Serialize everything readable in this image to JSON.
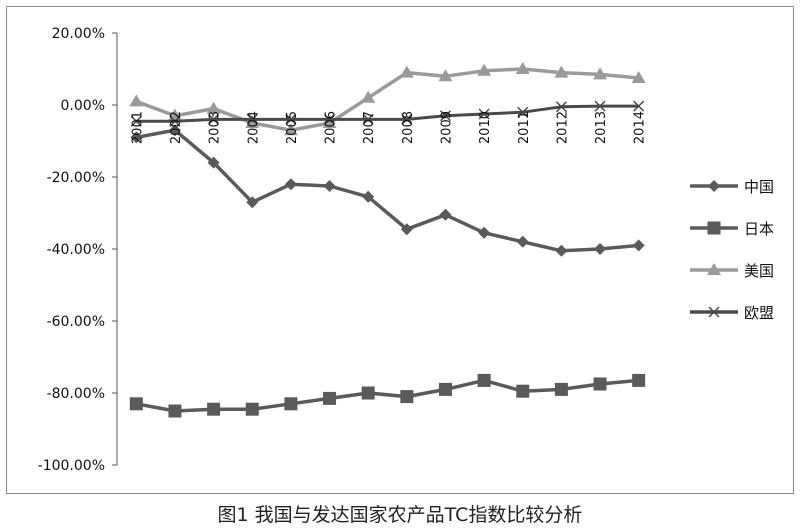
{
  "caption": "图1 我国与发达国家农产品TC指数比较分析",
  "chart_data": {
    "type": "line",
    "title": "",
    "xlabel": "",
    "ylabel": "",
    "categories": [
      "2001",
      "2002",
      "2003",
      "2004",
      "2005",
      "2006",
      "2007",
      "2008",
      "2009",
      "2010",
      "2011",
      "2012",
      "2013",
      "2014"
    ],
    "yticks": [
      "20.00%",
      "0.00%",
      "-20.00%",
      "-40.00%",
      "-60.00%",
      "-80.00%",
      "-100.00%"
    ],
    "ylim": [
      -100,
      20
    ],
    "legend_position": "right",
    "grid": false,
    "series": [
      {
        "name": "中国",
        "marker": "diamond",
        "color": "#5a5a5a",
        "values": [
          -9,
          -7,
          -16,
          -27,
          -22,
          -22.5,
          -25.5,
          -34.5,
          -30.5,
          -35.5,
          -38,
          -40.5,
          -40,
          -39
        ]
      },
      {
        "name": "日本",
        "marker": "square",
        "color": "#5a5a5a",
        "values": [
          -83,
          -85,
          -84.5,
          -84.5,
          -83,
          -81.5,
          -80,
          -81,
          -79,
          -76.5,
          -79.5,
          -79,
          -77.5,
          -76.5
        ]
      },
      {
        "name": "美国",
        "marker": "triangle",
        "color": "#9a9a9a",
        "values": [
          1,
          -3,
          -1,
          -5,
          -7,
          -5,
          2,
          9,
          8,
          9.5,
          10,
          9,
          8.5,
          7.5
        ]
      },
      {
        "name": "欧盟",
        "marker": "x",
        "color": "#4a4a4a",
        "values": [
          -4.5,
          -4.5,
          -4,
          -4,
          -4,
          -4,
          -4,
          -4,
          -3,
          -2.5,
          -2,
          -0.5,
          -0.3,
          -0.3
        ]
      }
    ]
  }
}
